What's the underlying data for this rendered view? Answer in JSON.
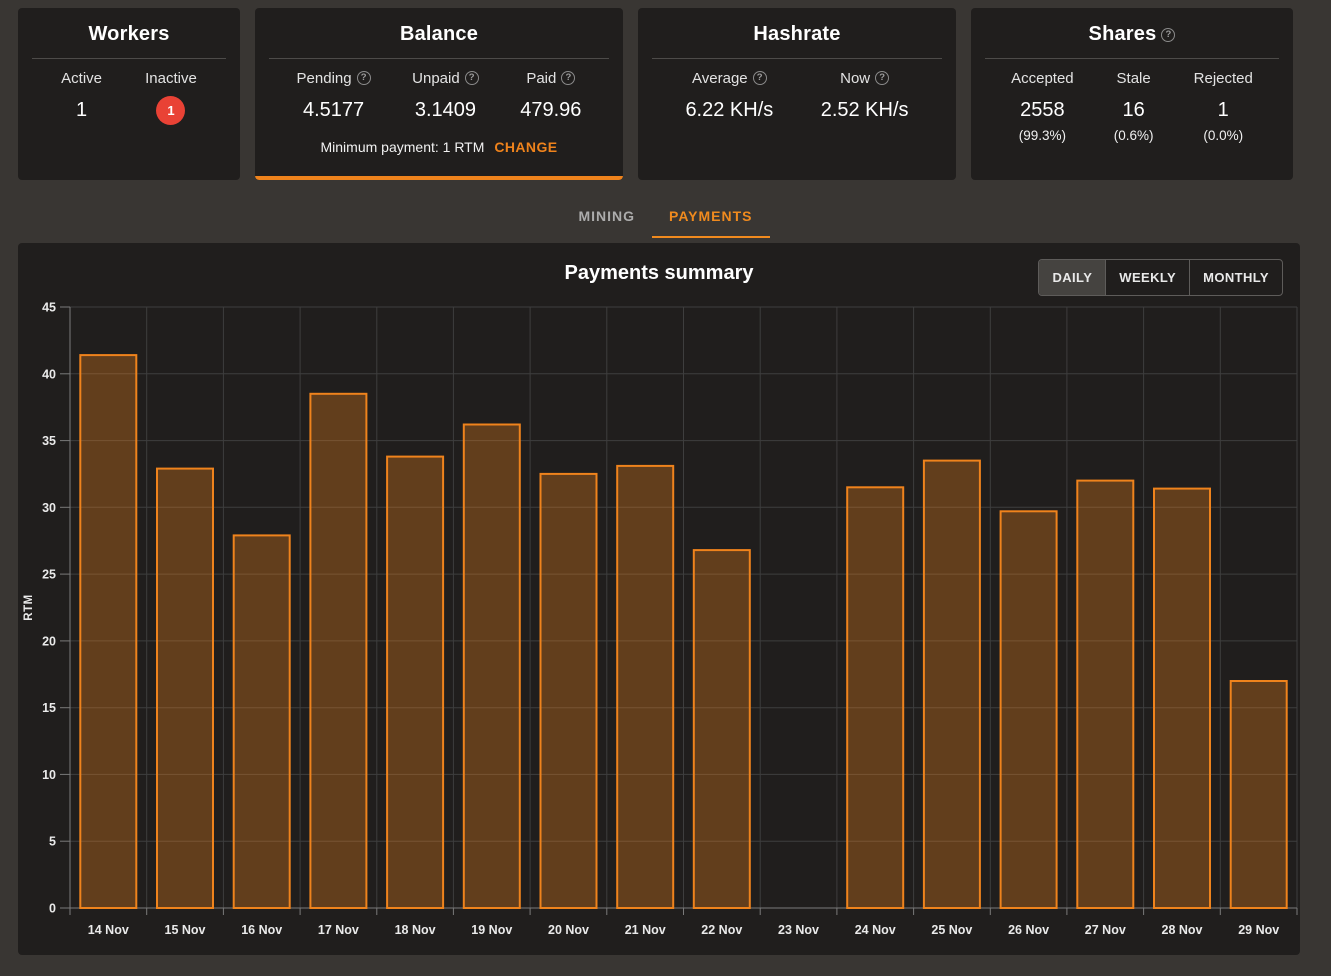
{
  "icons": {
    "help_glyph": "?"
  },
  "colors": {
    "accent_orange": "#ef831c",
    "badge_red": "#e94235",
    "bar_stroke": "#ef831c",
    "bar_fill": "rgba(239,131,28,0.32)",
    "grid": "#3e3e3e",
    "axis": "#7a7a7a",
    "panel_bg": "#201e1d",
    "page_bg": "#393633"
  },
  "cards": {
    "workers": {
      "title": "Workers",
      "stats": [
        {
          "label": "Active",
          "value": "1"
        },
        {
          "label": "Inactive",
          "value": "1"
        }
      ]
    },
    "balance": {
      "title": "Balance",
      "stats": [
        {
          "label": "Pending",
          "value": "4.5177"
        },
        {
          "label": "Unpaid",
          "value": "3.1409"
        },
        {
          "label": "Paid",
          "value": "479.96"
        }
      ],
      "minimum_payment_label": "Minimum payment: 1 RTM",
      "change_label": "CHANGE"
    },
    "hashrate": {
      "title": "Hashrate",
      "stats": [
        {
          "label": "Average",
          "value": "6.22 KH/s"
        },
        {
          "label": "Now",
          "value": "2.52 KH/s"
        }
      ]
    },
    "shares": {
      "title": "Shares",
      "stats": [
        {
          "label": "Accepted",
          "value": "2558",
          "percent": "(99.3%)"
        },
        {
          "label": "Stale",
          "value": "16",
          "percent": "(0.6%)"
        },
        {
          "label": "Rejected",
          "value": "1",
          "percent": "(0.0%)"
        }
      ]
    }
  },
  "tabs": [
    {
      "label": "MINING",
      "active": false
    },
    {
      "label": "PAYMENTS",
      "active": true
    }
  ],
  "chart_panel": {
    "title": "Payments summary",
    "range_buttons": [
      {
        "label": "DAILY",
        "active": true
      },
      {
        "label": "WEEKLY",
        "active": false
      },
      {
        "label": "MONTHLY",
        "active": false
      }
    ]
  },
  "chart_data": {
    "type": "bar",
    "title": "Payments summary",
    "ylabel": "RTM",
    "xlabel": "",
    "ylim": [
      0,
      45
    ],
    "ytick_step": 5,
    "grid": true,
    "legend": false,
    "categories": [
      "14 Nov",
      "15 Nov",
      "16 Nov",
      "17 Nov",
      "18 Nov",
      "19 Nov",
      "20 Nov",
      "21 Nov",
      "22 Nov",
      "23 Nov",
      "24 Nov",
      "25 Nov",
      "26 Nov",
      "27 Nov",
      "28 Nov",
      "29 Nov"
    ],
    "values": [
      41.4,
      32.9,
      27.9,
      38.5,
      33.8,
      36.2,
      32.5,
      33.1,
      26.8,
      0,
      31.5,
      33.5,
      29.7,
      32.0,
      31.4,
      17.0
    ]
  }
}
